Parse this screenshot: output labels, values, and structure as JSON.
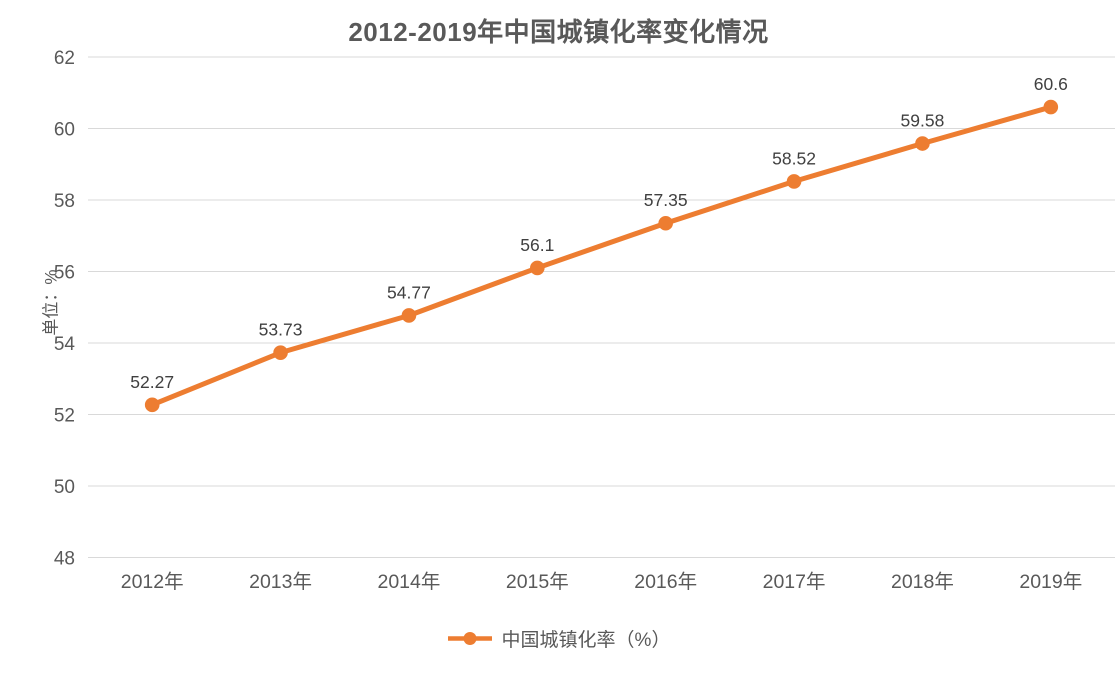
{
  "chart_data": {
    "type": "line",
    "title": "2012-2019年中国城镇化率变化情况",
    "ylabel": "单位：%",
    "xlabel": "",
    "categories": [
      "2012年",
      "2013年",
      "2014年",
      "2015年",
      "2016年",
      "2017年",
      "2018年",
      "2019年"
    ],
    "series": [
      {
        "name": "中国城镇化率（%）",
        "values": [
          52.27,
          53.73,
          54.77,
          56.1,
          57.35,
          58.52,
          59.58,
          60.6
        ]
      }
    ],
    "data_labels": [
      "52.27",
      "53.73",
      "54.77",
      "56.1",
      "57.35",
      "58.52",
      "59.58",
      "60.6"
    ],
    "y_ticks": [
      48,
      50,
      52,
      54,
      56,
      58,
      60,
      62
    ],
    "ylim": [
      48,
      62
    ],
    "grid": "horizontal",
    "legend_position": "bottom",
    "colors": {
      "series": "#ED7D31",
      "gridline": "#D9D9D9",
      "title_text": "#595959",
      "axis_text": "#595959",
      "data_label_text": "#404040",
      "background": "#FFFFFF"
    }
  }
}
